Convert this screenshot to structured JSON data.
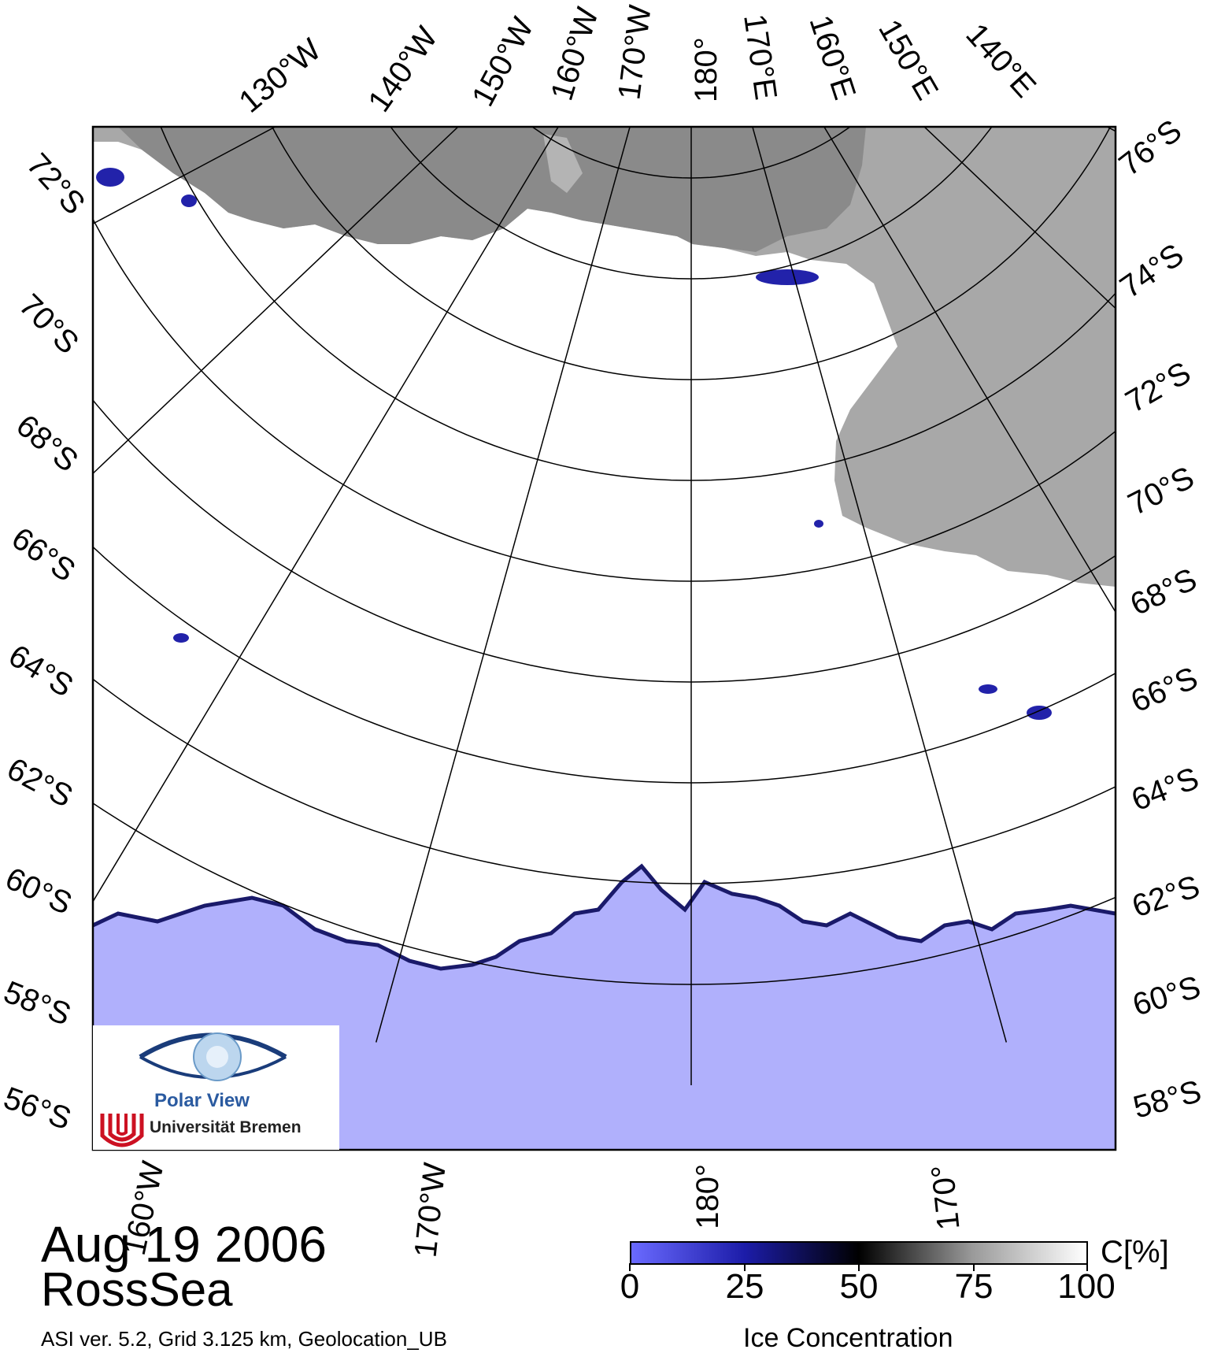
{
  "map": {
    "region": "RossSea",
    "date": "Aug 19 2006",
    "footer": "ASI ver. 5.2,  Grid 3.125 km, Geolocation_UB",
    "colors": {
      "ocean": "#b0b0fc",
      "land": "#a8a8a8",
      "ice_shelf": "#8a8a8a",
      "ice": "#ffffff",
      "grid": "#000000"
    },
    "top_meridian_labels": [
      "130°W",
      "140°W",
      "150°W",
      "160°W",
      "170°W",
      "180°",
      "170°E",
      "160°E",
      "150°E",
      "140°E"
    ],
    "left_parallel_labels": [
      "72°S",
      "70°S",
      "68°S",
      "66°S",
      "64°S",
      "62°S",
      "60°S",
      "58°S",
      "56°S"
    ],
    "right_parallel_labels": [
      "76°S",
      "74°S",
      "72°S",
      "70°S",
      "68°S",
      "66°S",
      "64°S",
      "62°S",
      "60°S",
      "58°S"
    ],
    "bottom_meridian_labels": [
      "160°W",
      "170°W",
      "180°",
      "170°"
    ]
  },
  "colorbar": {
    "title": "Ice Concentration",
    "unit": "C[%]",
    "ticks": [
      "0",
      "25",
      "50",
      "75",
      "100"
    ],
    "gradient": [
      "#6a6aff",
      "#1c1ca8",
      "#000000",
      "#9a9a9a",
      "#ffffff"
    ]
  },
  "logo": {
    "title": "Polar View",
    "subtitle": "Universität Bremen"
  }
}
